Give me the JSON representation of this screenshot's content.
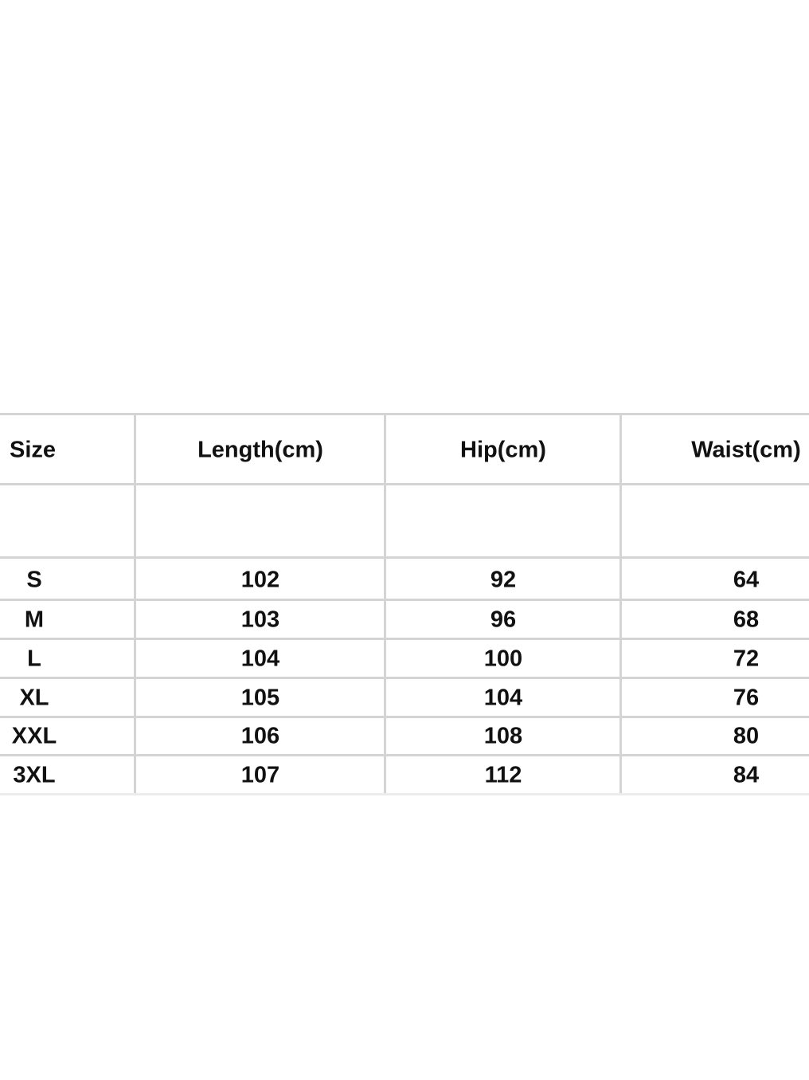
{
  "table": {
    "header": [
      "Size",
      "Length(cm)",
      "Hip(cm)",
      "Waist(cm)"
    ],
    "rows": [
      [
        "S",
        102,
        92,
        64
      ],
      [
        "M",
        103,
        96,
        68
      ],
      [
        "L",
        104,
        100,
        72
      ],
      [
        "XL",
        105,
        104,
        76
      ],
      [
        "XXL",
        106,
        108,
        80
      ],
      [
        "3XL",
        107,
        112,
        84
      ]
    ]
  }
}
